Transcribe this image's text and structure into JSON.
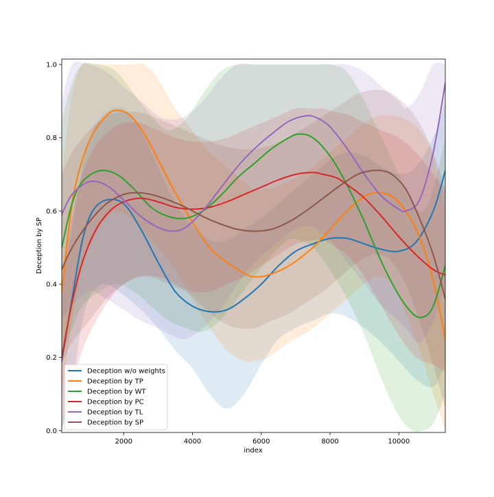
{
  "chart_data": {
    "type": "line",
    "title": "",
    "xlabel": "index",
    "ylabel": "Deception by SP",
    "xlim": [
      200,
      11350
    ],
    "ylim": [
      -0.005,
      1.015
    ],
    "xticks": [
      2000,
      4000,
      6000,
      8000,
      10000
    ],
    "yticks": [
      0.0,
      0.2,
      0.4,
      0.6,
      0.8,
      1.0
    ],
    "xtick_labels": [
      "2000",
      "4000",
      "6000",
      "8000",
      "10000"
    ],
    "ytick_labels": [
      "0.0",
      "0.2",
      "0.4",
      "0.6",
      "0.8",
      "1.0"
    ],
    "grid": false,
    "legend_position": "lower-left",
    "series": [
      {
        "name": "Deception w/o weights",
        "color": "#1f77b4",
        "x": [
          200,
          500,
          800,
          1100,
          1500,
          2000,
          2500,
          3000,
          3500,
          4000,
          4500,
          5000,
          5500,
          6000,
          6500,
          7000,
          7500,
          8000,
          8500,
          9000,
          9500,
          10000,
          10500,
          11000,
          11350
        ],
        "y": [
          0.19,
          0.36,
          0.52,
          0.6,
          0.63,
          0.62,
          0.55,
          0.46,
          0.38,
          0.34,
          0.325,
          0.33,
          0.36,
          0.4,
          0.45,
          0.49,
          0.51,
          0.525,
          0.525,
          0.51,
          0.495,
          0.49,
          0.515,
          0.6,
          0.71
        ],
        "band_upper": [
          0.4,
          0.55,
          0.72,
          0.82,
          0.87,
          0.88,
          0.82,
          0.72,
          0.62,
          0.56,
          0.52,
          0.52,
          0.55,
          0.58,
          0.62,
          0.66,
          0.7,
          0.74,
          0.76,
          0.75,
          0.72,
          0.7,
          0.72,
          0.8,
          0.9
        ],
        "band_lower": [
          0.0,
          0.12,
          0.3,
          0.38,
          0.4,
          0.37,
          0.33,
          0.28,
          0.22,
          0.17,
          0.1,
          0.06,
          0.1,
          0.18,
          0.25,
          0.28,
          0.3,
          0.32,
          0.31,
          0.28,
          0.24,
          0.19,
          0.14,
          0.12,
          0.18
        ]
      },
      {
        "name": "Deception by TP",
        "color": "#ff7f0e",
        "x": [
          200,
          500,
          800,
          1100,
          1500,
          1800,
          2200,
          2600,
          3000,
          3500,
          4000,
          4500,
          5000,
          5500,
          5800,
          6200,
          6800,
          7500,
          8000,
          8500,
          9000,
          9400,
          9800,
          10200,
          10600,
          11000,
          11350
        ],
        "y": [
          0.38,
          0.62,
          0.74,
          0.81,
          0.86,
          0.875,
          0.86,
          0.81,
          0.74,
          0.65,
          0.57,
          0.5,
          0.46,
          0.43,
          0.42,
          0.425,
          0.45,
          0.5,
          0.55,
          0.6,
          0.64,
          0.65,
          0.64,
          0.6,
          0.53,
          0.41,
          0.25
        ],
        "band_upper": [
          0.7,
          0.92,
          1.0,
          1.0,
          1.0,
          1.0,
          1.0,
          1.0,
          0.96,
          0.88,
          0.82,
          0.76,
          0.72,
          0.68,
          0.66,
          0.66,
          0.68,
          0.72,
          0.76,
          0.8,
          0.84,
          0.86,
          0.86,
          0.85,
          0.82,
          0.75,
          0.6
        ],
        "band_lower": [
          0.1,
          0.3,
          0.45,
          0.52,
          0.58,
          0.6,
          0.58,
          0.54,
          0.5,
          0.44,
          0.36,
          0.28,
          0.22,
          0.19,
          0.19,
          0.2,
          0.24,
          0.28,
          0.32,
          0.36,
          0.4,
          0.42,
          0.4,
          0.32,
          0.22,
          0.1,
          0.0
        ]
      },
      {
        "name": "Deception by WT",
        "color": "#2ca02c",
        "x": [
          200,
          500,
          800,
          1300,
          1800,
          2300,
          2800,
          3300,
          3800,
          4300,
          4800,
          5300,
          5800,
          6300,
          6800,
          7100,
          7500,
          8000,
          8500,
          9000,
          9500,
          10000,
          10400,
          10700,
          11000,
          11350
        ],
        "y": [
          0.5,
          0.62,
          0.68,
          0.71,
          0.7,
          0.66,
          0.61,
          0.585,
          0.58,
          0.6,
          0.64,
          0.69,
          0.73,
          0.77,
          0.8,
          0.81,
          0.8,
          0.75,
          0.67,
          0.57,
          0.46,
          0.37,
          0.32,
          0.31,
          0.34,
          0.45
        ],
        "band_upper": [
          0.85,
          0.95,
          1.0,
          1.0,
          0.98,
          0.92,
          0.86,
          0.82,
          0.85,
          0.92,
          0.98,
          1.0,
          1.0,
          1.0,
          1.0,
          1.0,
          1.0,
          1.0,
          0.98,
          0.9,
          0.8,
          0.7,
          0.62,
          0.6,
          0.66,
          0.8
        ],
        "band_lower": [
          0.2,
          0.28,
          0.34,
          0.38,
          0.4,
          0.38,
          0.34,
          0.3,
          0.28,
          0.27,
          0.3,
          0.36,
          0.42,
          0.48,
          0.52,
          0.52,
          0.5,
          0.44,
          0.36,
          0.26,
          0.14,
          0.04,
          0.0,
          0.0,
          0.02,
          0.1
        ]
      },
      {
        "name": "Deception by PC",
        "color": "#d62728",
        "x": [
          200,
          500,
          800,
          1200,
          1600,
          2000,
          2500,
          3000,
          3500,
          4000,
          4500,
          5000,
          5500,
          6000,
          6500,
          7000,
          7500,
          7800,
          8200,
          8600,
          9000,
          9500,
          10000,
          10500,
          11000,
          11350
        ],
        "y": [
          0.2,
          0.35,
          0.46,
          0.55,
          0.6,
          0.625,
          0.635,
          0.625,
          0.61,
          0.605,
          0.61,
          0.625,
          0.645,
          0.665,
          0.685,
          0.7,
          0.705,
          0.7,
          0.69,
          0.665,
          0.635,
          0.585,
          0.53,
          0.48,
          0.44,
          0.425
        ],
        "band_upper": [
          0.4,
          0.58,
          0.7,
          0.78,
          0.82,
          0.84,
          0.84,
          0.82,
          0.8,
          0.79,
          0.79,
          0.8,
          0.82,
          0.84,
          0.86,
          0.88,
          0.88,
          0.88,
          0.87,
          0.86,
          0.84,
          0.82,
          0.8,
          0.76,
          0.7,
          0.66
        ],
        "band_lower": [
          0.0,
          0.12,
          0.22,
          0.3,
          0.36,
          0.4,
          0.42,
          0.42,
          0.4,
          0.38,
          0.38,
          0.4,
          0.42,
          0.45,
          0.48,
          0.51,
          0.52,
          0.52,
          0.5,
          0.47,
          0.42,
          0.34,
          0.26,
          0.2,
          0.18,
          0.16
        ]
      },
      {
        "name": "Deception by TL",
        "color": "#9467bd",
        "x": [
          200,
          500,
          1000,
          1500,
          2000,
          2500,
          3000,
          3400,
          3800,
          4300,
          4800,
          5300,
          5800,
          6300,
          6800,
          7300,
          7600,
          8000,
          8500,
          9000,
          9500,
          10000,
          10200,
          10600,
          11000,
          11350
        ],
        "y": [
          0.59,
          0.645,
          0.68,
          0.67,
          0.63,
          0.585,
          0.555,
          0.545,
          0.555,
          0.6,
          0.66,
          0.72,
          0.77,
          0.81,
          0.845,
          0.86,
          0.855,
          0.83,
          0.77,
          0.7,
          0.64,
          0.605,
          0.6,
          0.63,
          0.76,
          0.95
        ],
        "band_upper": [
          0.9,
          1.0,
          1.0,
          0.98,
          0.94,
          0.9,
          0.86,
          0.85,
          0.86,
          0.9,
          0.96,
          1.0,
          1.0,
          1.0,
          1.0,
          1.0,
          1.0,
          1.0,
          1.0,
          0.98,
          0.94,
          0.9,
          0.88,
          0.92,
          1.0,
          1.0
        ],
        "band_lower": [
          0.3,
          0.34,
          0.38,
          0.36,
          0.33,
          0.3,
          0.28,
          0.26,
          0.25,
          0.28,
          0.33,
          0.4,
          0.46,
          0.5,
          0.54,
          0.56,
          0.55,
          0.52,
          0.46,
          0.4,
          0.34,
          0.3,
          0.28,
          0.24,
          0.3,
          0.4
        ]
      },
      {
        "name": "Deception by SP",
        "color": "#8c564b",
        "x": [
          200,
          500,
          1000,
          1500,
          2000,
          2400,
          2800,
          3300,
          3800,
          4300,
          4800,
          5300,
          5800,
          6300,
          6800,
          7300,
          7800,
          8300,
          8800,
          9200,
          9500,
          9800,
          10200,
          10600,
          11000,
          11350
        ],
        "y": [
          0.44,
          0.5,
          0.57,
          0.62,
          0.645,
          0.65,
          0.645,
          0.63,
          0.61,
          0.585,
          0.565,
          0.55,
          0.545,
          0.55,
          0.57,
          0.6,
          0.635,
          0.67,
          0.7,
          0.71,
          0.71,
          0.7,
          0.66,
          0.58,
          0.48,
          0.36
        ],
        "band_upper": [
          0.7,
          0.76,
          0.82,
          0.86,
          0.87,
          0.87,
          0.86,
          0.84,
          0.82,
          0.8,
          0.78,
          0.77,
          0.77,
          0.78,
          0.8,
          0.83,
          0.86,
          0.89,
          0.92,
          0.93,
          0.93,
          0.92,
          0.89,
          0.84,
          0.76,
          0.66
        ],
        "band_lower": [
          0.18,
          0.24,
          0.3,
          0.36,
          0.4,
          0.42,
          0.42,
          0.4,
          0.38,
          0.34,
          0.3,
          0.28,
          0.28,
          0.3,
          0.32,
          0.35,
          0.38,
          0.42,
          0.46,
          0.48,
          0.48,
          0.46,
          0.4,
          0.3,
          0.18,
          0.06
        ]
      }
    ]
  }
}
